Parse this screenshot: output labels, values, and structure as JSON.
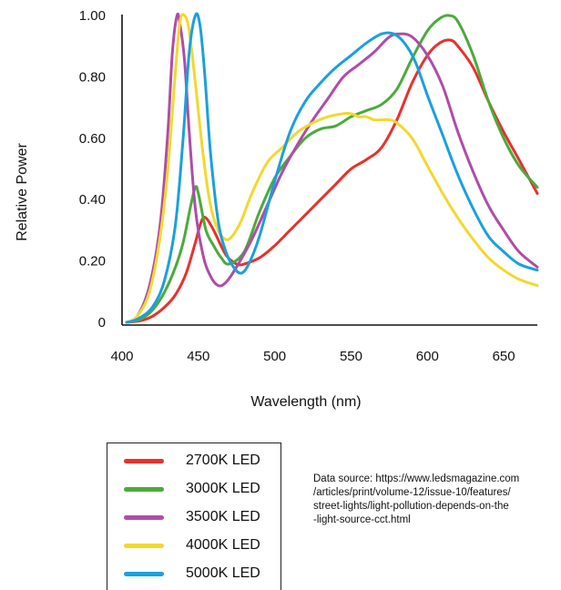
{
  "chart_data": {
    "type": "line",
    "title": "",
    "xlabel": "Wavelength (nm)",
    "ylabel": "Relative Power",
    "xlim": [
      400,
      672
    ],
    "ylim": [
      0,
      1.0
    ],
    "xticks": [
      400,
      450,
      500,
      550,
      600,
      650
    ],
    "xtick_labels": [
      "400",
      "450",
      "500",
      "550",
      "600",
      "650"
    ],
    "yticks": [
      0,
      0.2,
      0.4,
      0.6,
      0.8,
      1.0
    ],
    "ytick_labels": [
      "0",
      "0.20",
      "0.40",
      "0.60",
      "0.80",
      "1.00"
    ],
    "legend_position": "bottom-left",
    "series": [
      {
        "name": "2700K LED",
        "color": "#e8312b",
        "x": [
          403,
          412,
          420,
          428,
          435,
          442,
          448,
          452,
          455,
          460,
          468,
          475,
          480,
          490,
          500,
          510,
          520,
          530,
          540,
          550,
          560,
          570,
          580,
          590,
          600,
          608,
          615,
          620,
          630,
          640,
          650,
          660,
          672
        ],
        "y": [
          0,
          0.005,
          0.02,
          0.05,
          0.09,
          0.16,
          0.26,
          0.33,
          0.34,
          0.3,
          0.22,
          0.19,
          0.19,
          0.21,
          0.25,
          0.3,
          0.35,
          0.4,
          0.45,
          0.5,
          0.53,
          0.57,
          0.66,
          0.78,
          0.87,
          0.91,
          0.92,
          0.9,
          0.83,
          0.72,
          0.62,
          0.53,
          0.42
        ]
      },
      {
        "name": "3000K LED",
        "color": "#4aab3a",
        "x": [
          403,
          412,
          420,
          428,
          435,
          440,
          445,
          448,
          450,
          455,
          460,
          465,
          470,
          480,
          490,
          500,
          510,
          520,
          530,
          540,
          550,
          560,
          570,
          580,
          590,
          600,
          608,
          614,
          620,
          630,
          640,
          650,
          660,
          672
        ],
        "y": [
          0,
          0.01,
          0.04,
          0.1,
          0.18,
          0.26,
          0.38,
          0.44,
          0.42,
          0.3,
          0.25,
          0.21,
          0.19,
          0.23,
          0.36,
          0.47,
          0.54,
          0.6,
          0.63,
          0.64,
          0.67,
          0.69,
          0.71,
          0.76,
          0.86,
          0.95,
          0.99,
          1.0,
          0.98,
          0.87,
          0.72,
          0.6,
          0.51,
          0.44
        ]
      },
      {
        "name": "3500K LED",
        "color": "#b04ca8",
        "x": [
          403,
          410,
          418,
          425,
          430,
          433,
          436,
          438,
          441,
          444,
          448,
          453,
          458,
          463,
          468,
          475,
          485,
          495,
          505,
          515,
          525,
          535,
          545,
          555,
          565,
          575,
          582,
          590,
          600,
          610,
          620,
          630,
          640,
          650,
          660,
          672
        ],
        "y": [
          0,
          0.02,
          0.12,
          0.32,
          0.62,
          0.88,
          1.0,
          0.97,
          0.85,
          0.62,
          0.37,
          0.22,
          0.15,
          0.12,
          0.13,
          0.18,
          0.27,
          0.38,
          0.49,
          0.58,
          0.66,
          0.73,
          0.8,
          0.84,
          0.88,
          0.93,
          0.94,
          0.93,
          0.87,
          0.77,
          0.62,
          0.49,
          0.38,
          0.3,
          0.23,
          0.18
        ]
      },
      {
        "name": "4000K LED",
        "color": "#f2d82d",
        "x": [
          403,
          410,
          418,
          425,
          430,
          435,
          438,
          441,
          444,
          448,
          453,
          458,
          463,
          468,
          472,
          478,
          485,
          495,
          505,
          515,
          525,
          535,
          545,
          550,
          555,
          560,
          565,
          570,
          575,
          580,
          590,
          600,
          610,
          620,
          630,
          640,
          650,
          660,
          672
        ],
        "y": [
          0,
          0.02,
          0.1,
          0.28,
          0.5,
          0.82,
          0.98,
          1.0,
          0.95,
          0.78,
          0.55,
          0.38,
          0.3,
          0.27,
          0.28,
          0.33,
          0.42,
          0.52,
          0.57,
          0.62,
          0.65,
          0.67,
          0.68,
          0.68,
          0.67,
          0.67,
          0.66,
          0.66,
          0.66,
          0.65,
          0.6,
          0.51,
          0.42,
          0.34,
          0.27,
          0.21,
          0.17,
          0.14,
          0.12
        ]
      },
      {
        "name": "5000K LED",
        "color": "#1aa0dd",
        "x": [
          403,
          410,
          420,
          428,
          435,
          440,
          444,
          448,
          451,
          454,
          458,
          463,
          468,
          473,
          478,
          483,
          490,
          500,
          510,
          520,
          530,
          540,
          550,
          560,
          570,
          578,
          585,
          592,
          600,
          610,
          620,
          630,
          640,
          650,
          660,
          672
        ],
        "y": [
          0,
          0.01,
          0.05,
          0.14,
          0.32,
          0.6,
          0.88,
          1.0,
          0.97,
          0.82,
          0.55,
          0.33,
          0.23,
          0.18,
          0.16,
          0.19,
          0.28,
          0.46,
          0.62,
          0.72,
          0.78,
          0.83,
          0.87,
          0.91,
          0.94,
          0.94,
          0.91,
          0.85,
          0.74,
          0.61,
          0.48,
          0.37,
          0.28,
          0.23,
          0.19,
          0.17
        ]
      }
    ]
  },
  "source_text": {
    "lines": [
      "Data source: https://www.ledsmagazine.com",
      "/articles/print/volume-12/issue-10/features/",
      "street-lights/light-pollution-depends-on-the",
      "-light-source-cct.html"
    ]
  }
}
